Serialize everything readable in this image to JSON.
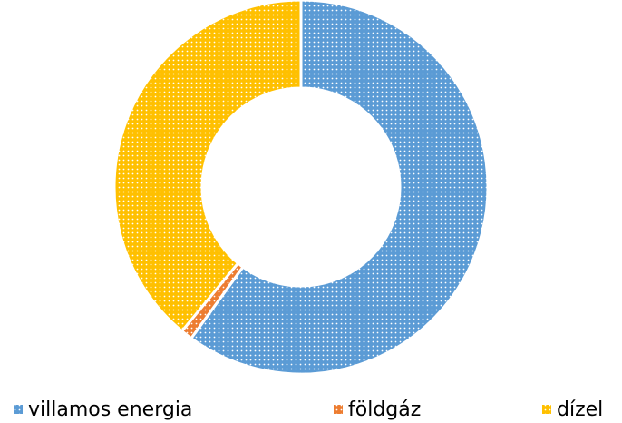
{
  "chart_data": {
    "type": "donut",
    "categories": [
      "villamos energia",
      "földgáz",
      "dízel"
    ],
    "values": [
      60,
      1,
      39
    ],
    "colors": [
      "#5b9bd5",
      "#ed7d31",
      "#ffc000"
    ],
    "legend": "bottom"
  }
}
